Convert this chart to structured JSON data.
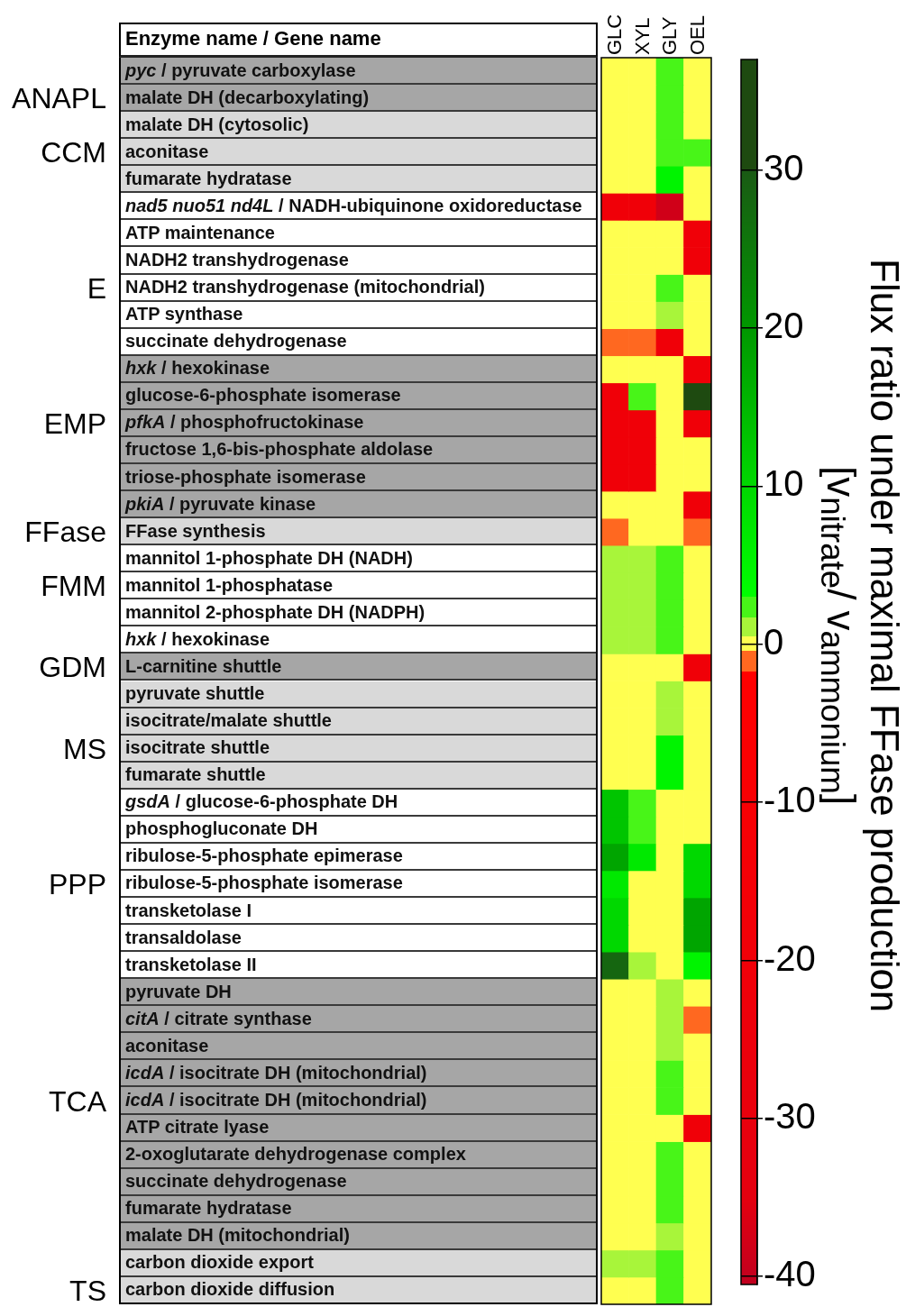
{
  "chart_data": {
    "type": "heatmap",
    "ylabel": "Enzyme name / Gene name",
    "clabel": "Flux ratio under maximal FFase production [v$_{nitrate}$/ v$_{ammonium}$]",
    "categories": [
      "GLC",
      "XYL",
      "GLY",
      "OEL"
    ],
    "y_categories": [
      "pyc / pyruvate carboxylase",
      "malate DH (decarboxylating)",
      "malate DH (cytosolic)",
      "aconitase",
      "fumarate hydratase",
      "nad5 nuo51 nd4L / NADH-ubiquinone oxidoreductase",
      "ATP maintenance",
      "NADH2 transhydrogenase",
      "NADH2 transhydrogenase (mitochondrial)",
      "ATP synthase",
      "succinate dehydrogenase",
      "hxk / hexokinase",
      "glucose-6-phosphate isomerase",
      "pfkA / phosphofructokinase",
      "fructose 1,6-bis-phosphate aldolase",
      "triose-phosphate isomerase",
      "pkiA / pyruvate kinase",
      "FFase synthesis",
      "mannitol 1-phosphate DH (NADH)",
      "mannitol 1-phosphatase",
      "mannitol 2-phosphate DH (NADPH)",
      "hxk / hexokinase",
      "L-carnitine shuttle",
      "pyruvate shuttle",
      "isocitrate/malate shuttle",
      "isocitrate shuttle",
      "fumarate shuttle",
      "gsdA / glucose-6-phosphate DH",
      "phosphogluconate DH",
      "ribulose-5-phosphate epimerase",
      "ribulose-5-phosphate isomerase",
      "transketolase I",
      "transaldolase",
      "transketolase II",
      "pyruvate DH",
      "citA / citrate synthase",
      "aconitase",
      "icdA / isocitrate DH (mitochondrial)",
      "icdA / isocitrate DH (mitochondrial)",
      "ATP citrate lyase",
      "2-oxoglutarate dehydrogenase complex",
      "succinate dehydrogenase",
      "fumarate hydratase",
      "malate DH (mitochondrial)",
      "carbon dioxide export",
      "carbon dioxide diffusion"
    ],
    "y2_categories": [
      null,
      "ANAPL",
      null,
      "CCM",
      null,
      null,
      null,
      null,
      "E",
      null,
      null,
      null,
      null,
      "EMP",
      null,
      null,
      null,
      "FFase",
      null,
      "FMM",
      null,
      null,
      "GDM",
      null,
      null,
      "MS",
      null,
      null,
      null,
      null,
      "PPP",
      null,
      null,
      null,
      null,
      null,
      null,
      null,
      "TCA",
      null,
      null,
      null,
      null,
      null,
      null,
      "TS"
    ],
    "cells": [
      [
        0,
        0,
        2.5,
        0
      ],
      [
        0,
        0,
        2.5,
        0
      ],
      [
        0,
        0,
        2.5,
        0
      ],
      [
        0,
        0,
        2.5,
        2.5
      ],
      [
        0,
        0,
        5,
        0
      ],
      [
        -20,
        -20,
        -38,
        0
      ],
      [
        0,
        0,
        0,
        -20
      ],
      [
        0,
        0,
        0,
        -20
      ],
      [
        0,
        0,
        2.5,
        0
      ],
      [
        0,
        0,
        1,
        0
      ],
      [
        -1,
        -1,
        -20,
        0
      ],
      [
        0,
        0,
        0,
        -20
      ],
      [
        -20,
        2.5,
        0,
        35
      ],
      [
        -20,
        -20,
        0,
        -20
      ],
      [
        -20,
        -20,
        0,
        0
      ],
      [
        -20,
        -20,
        0,
        0
      ],
      [
        0,
        0,
        0,
        -20
      ],
      [
        -1,
        0,
        0,
        -1
      ],
      [
        1,
        1,
        2.5,
        0
      ],
      [
        1,
        1,
        2.5,
        0
      ],
      [
        1,
        1,
        2.5,
        0
      ],
      [
        1,
        1,
        2.5,
        0
      ],
      [
        0,
        0,
        0,
        -20
      ],
      [
        0,
        0,
        1,
        0
      ],
      [
        0,
        0,
        1,
        0
      ],
      [
        0,
        0,
        5,
        0
      ],
      [
        0,
        0,
        5,
        0
      ],
      [
        13,
        2.5,
        0,
        0
      ],
      [
        13,
        2.5,
        0,
        0
      ],
      [
        18,
        7,
        0,
        10
      ],
      [
        7,
        0,
        0,
        10
      ],
      [
        10,
        0,
        0,
        18
      ],
      [
        10,
        0,
        0,
        18
      ],
      [
        28,
        1,
        0,
        5
      ],
      [
        0,
        0,
        1,
        0
      ],
      [
        0,
        0,
        1,
        -1
      ],
      [
        0,
        0,
        1,
        0
      ],
      [
        0,
        0,
        2.5,
        0
      ],
      [
        0,
        0,
        2.5,
        0
      ],
      [
        0,
        0,
        0,
        -20
      ],
      [
        0,
        0,
        2.5,
        0
      ],
      [
        0,
        0,
        2.5,
        0
      ],
      [
        0,
        0,
        2.5,
        0
      ],
      [
        0,
        0,
        1,
        0
      ],
      [
        1,
        1,
        2.5,
        0
      ],
      [
        0,
        0,
        2.5,
        0
      ]
    ],
    "clim": [
      -40.5,
      37
    ],
    "cticks": [
      -40,
      -30,
      -20,
      -10,
      0,
      10,
      20,
      30
    ]
  }
}
